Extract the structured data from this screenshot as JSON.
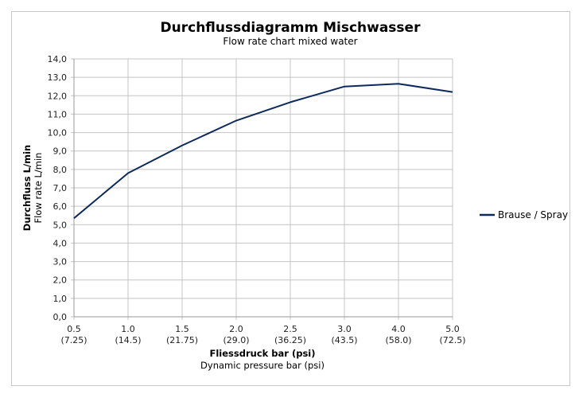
{
  "chart_data": {
    "type": "line",
    "title": "Durchflussdiagramm Mischwasser",
    "subtitle": "Flow rate chart mixed water",
    "xlabel": "Fliessdruck bar (psi)",
    "xlabel_sub": "Dynamic pressure bar (psi)",
    "ylabel": "Durchfluss L/min",
    "ylabel_sub": "Flow rate L/min",
    "categories": [
      "0.5",
      "1.0",
      "1.5",
      "2.0",
      "2.5",
      "3.0",
      "4.0",
      "5.0"
    ],
    "categories_sub": [
      "(7.25)",
      "(14.5)",
      "(21.75)",
      "(29.0)",
      "(36.25)",
      "(43.5)",
      "(58.0)",
      "(72.5)"
    ],
    "y_ticks": [
      "0,0",
      "1,0",
      "2,0",
      "3,0",
      "4,0",
      "5,0",
      "6,0",
      "7,0",
      "8,0",
      "9,0",
      "10,0",
      "11,0",
      "12,0",
      "13,0",
      "14,0"
    ],
    "ylim": [
      0,
      14
    ],
    "grid": true,
    "legend_position": "right",
    "series": [
      {
        "name": "Brause / Spray",
        "color": "#0d2a5c",
        "values": [
          5.35,
          7.8,
          9.3,
          10.65,
          11.65,
          12.5,
          12.65,
          12.2
        ]
      }
    ]
  }
}
